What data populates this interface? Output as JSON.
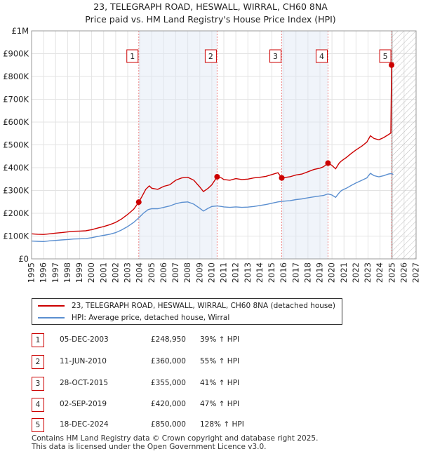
{
  "title_line1": "23, TELEGRAPH ROAD, HESWALL, WIRRAL, CH60 8NA",
  "title_line2": "Price paid vs. HM Land Registry's House Price Index (HPI)",
  "colors": {
    "price": "#cc0000",
    "hpi": "#5b8fd0",
    "marker": "#cc0000",
    "grid": "#e3e3e3"
  },
  "chart_data": {
    "type": "line",
    "xlim": [
      1995,
      2027
    ],
    "ylim": [
      0,
      1000000
    ],
    "y_ticks": [
      0,
      100000,
      200000,
      300000,
      400000,
      500000,
      600000,
      700000,
      800000,
      900000,
      1000000
    ],
    "y_tick_labels": [
      "£0",
      "£100K",
      "£200K",
      "£300K",
      "£400K",
      "£500K",
      "£600K",
      "£700K",
      "£800K",
      "£900K",
      "£1M"
    ],
    "x_ticks": [
      1995,
      1996,
      1997,
      1998,
      1999,
      2000,
      2001,
      2002,
      2003,
      2004,
      2005,
      2006,
      2007,
      2008,
      2009,
      2010,
      2011,
      2012,
      2013,
      2014,
      2015,
      2016,
      2017,
      2018,
      2019,
      2020,
      2021,
      2022,
      2023,
      2024,
      2025,
      2026,
      2027
    ],
    "grid": true,
    "future_hatch_from": 2025.0,
    "series": [
      {
        "name": "23, TELEGRAPH ROAD, HESWALL, WIRRAL, CH60 8NA (detached house)",
        "color": "#cc0000",
        "points": [
          [
            1995.0,
            110000
          ],
          [
            1995.5,
            108000
          ],
          [
            1996.0,
            107000
          ],
          [
            1996.5,
            110000
          ],
          [
            1997.0,
            113000
          ],
          [
            1997.5,
            115000
          ],
          [
            1998.0,
            118000
          ],
          [
            1998.5,
            121000
          ],
          [
            1999.0,
            122000
          ],
          [
            1999.5,
            123000
          ],
          [
            2000.0,
            128000
          ],
          [
            2000.5,
            135000
          ],
          [
            2001.0,
            142000
          ],
          [
            2001.5,
            150000
          ],
          [
            2002.0,
            160000
          ],
          [
            2002.5,
            175000
          ],
          [
            2003.0,
            195000
          ],
          [
            2003.5,
            218000
          ],
          [
            2003.92,
            248950
          ],
          [
            2004.2,
            275000
          ],
          [
            2004.5,
            305000
          ],
          [
            2004.8,
            320000
          ],
          [
            2005.0,
            310000
          ],
          [
            2005.5,
            305000
          ],
          [
            2006.0,
            318000
          ],
          [
            2006.5,
            325000
          ],
          [
            2007.0,
            345000
          ],
          [
            2007.5,
            355000
          ],
          [
            2008.0,
            358000
          ],
          [
            2008.5,
            345000
          ],
          [
            2009.0,
            315000
          ],
          [
            2009.3,
            295000
          ],
          [
            2009.7,
            310000
          ],
          [
            2010.0,
            325000
          ],
          [
            2010.44,
            360000
          ],
          [
            2010.8,
            355000
          ],
          [
            2011.0,
            348000
          ],
          [
            2011.5,
            345000
          ],
          [
            2012.0,
            352000
          ],
          [
            2012.5,
            348000
          ],
          [
            2013.0,
            350000
          ],
          [
            2013.5,
            355000
          ],
          [
            2014.0,
            358000
          ],
          [
            2014.5,
            362000
          ],
          [
            2015.0,
            370000
          ],
          [
            2015.5,
            378000
          ],
          [
            2015.82,
            355000
          ],
          [
            2016.2,
            358000
          ],
          [
            2016.5,
            360000
          ],
          [
            2017.0,
            368000
          ],
          [
            2017.5,
            372000
          ],
          [
            2018.0,
            382000
          ],
          [
            2018.5,
            392000
          ],
          [
            2019.0,
            398000
          ],
          [
            2019.3,
            404000
          ],
          [
            2019.67,
            420000
          ],
          [
            2020.0,
            410000
          ],
          [
            2020.3,
            395000
          ],
          [
            2020.6,
            420000
          ],
          [
            2020.8,
            430000
          ],
          [
            2021.2,
            445000
          ],
          [
            2021.6,
            462000
          ],
          [
            2022.0,
            478000
          ],
          [
            2022.5,
            495000
          ],
          [
            2022.9,
            512000
          ],
          [
            2023.2,
            540000
          ],
          [
            2023.5,
            528000
          ],
          [
            2023.9,
            522000
          ],
          [
            2024.3,
            532000
          ],
          [
            2024.7,
            545000
          ],
          [
            2024.9,
            552000
          ],
          [
            2024.96,
            850000
          ],
          [
            2025.1,
            862000
          ]
        ]
      },
      {
        "name": "HPI: Average price, detached house, Wirral",
        "color": "#5b8fd0",
        "points": [
          [
            1995.0,
            78000
          ],
          [
            1995.5,
            77000
          ],
          [
            1996.0,
            76000
          ],
          [
            1996.5,
            79000
          ],
          [
            1997.0,
            81000
          ],
          [
            1997.5,
            83000
          ],
          [
            1998.0,
            85000
          ],
          [
            1998.5,
            87000
          ],
          [
            1999.0,
            88000
          ],
          [
            1999.5,
            89000
          ],
          [
            2000.0,
            93000
          ],
          [
            2000.5,
            98000
          ],
          [
            2001.0,
            103000
          ],
          [
            2001.5,
            108000
          ],
          [
            2002.0,
            115000
          ],
          [
            2002.5,
            127000
          ],
          [
            2003.0,
            142000
          ],
          [
            2003.5,
            160000
          ],
          [
            2003.92,
            180000
          ],
          [
            2004.3,
            200000
          ],
          [
            2004.7,
            216000
          ],
          [
            2005.0,
            220000
          ],
          [
            2005.5,
            220000
          ],
          [
            2006.0,
            226000
          ],
          [
            2006.5,
            232000
          ],
          [
            2007.0,
            242000
          ],
          [
            2007.5,
            248000
          ],
          [
            2008.0,
            250000
          ],
          [
            2008.5,
            240000
          ],
          [
            2009.0,
            222000
          ],
          [
            2009.3,
            210000
          ],
          [
            2009.7,
            222000
          ],
          [
            2010.0,
            230000
          ],
          [
            2010.44,
            232000
          ],
          [
            2010.8,
            230000
          ],
          [
            2011.0,
            228000
          ],
          [
            2011.5,
            226000
          ],
          [
            2012.0,
            228000
          ],
          [
            2012.5,
            226000
          ],
          [
            2013.0,
            227000
          ],
          [
            2013.5,
            230000
          ],
          [
            2014.0,
            234000
          ],
          [
            2014.5,
            238000
          ],
          [
            2015.0,
            244000
          ],
          [
            2015.5,
            250000
          ],
          [
            2015.82,
            252000
          ],
          [
            2016.2,
            254000
          ],
          [
            2016.5,
            255000
          ],
          [
            2017.0,
            260000
          ],
          [
            2017.5,
            263000
          ],
          [
            2018.0,
            268000
          ],
          [
            2018.5,
            272000
          ],
          [
            2019.0,
            276000
          ],
          [
            2019.3,
            278000
          ],
          [
            2019.67,
            285000
          ],
          [
            2020.0,
            280000
          ],
          [
            2020.3,
            270000
          ],
          [
            2020.6,
            290000
          ],
          [
            2020.8,
            300000
          ],
          [
            2021.2,
            310000
          ],
          [
            2021.6,
            322000
          ],
          [
            2022.0,
            333000
          ],
          [
            2022.5,
            345000
          ],
          [
            2022.9,
            355000
          ],
          [
            2023.2,
            375000
          ],
          [
            2023.5,
            365000
          ],
          [
            2023.9,
            360000
          ],
          [
            2024.3,
            365000
          ],
          [
            2024.7,
            372000
          ],
          [
            2024.96,
            374000
          ],
          [
            2025.1,
            370000
          ]
        ]
      }
    ],
    "transactions": [
      {
        "num": "1",
        "x": 2003.92,
        "price": 248950,
        "date": "05-DEC-2003",
        "price_label": "£248,950",
        "hpi_label": "39% ↑ HPI"
      },
      {
        "num": "2",
        "x": 2010.44,
        "price": 360000,
        "date": "11-JUN-2010",
        "price_label": "£360,000",
        "hpi_label": "55% ↑ HPI"
      },
      {
        "num": "3",
        "x": 2015.82,
        "price": 355000,
        "date": "28-OCT-2015",
        "price_label": "£355,000",
        "hpi_label": "41% ↑ HPI"
      },
      {
        "num": "4",
        "x": 2019.67,
        "price": 420000,
        "date": "02-SEP-2019",
        "price_label": "£420,000",
        "hpi_label": "47% ↑ HPI"
      },
      {
        "num": "5",
        "x": 2024.96,
        "price": 850000,
        "date": "18-DEC-2024",
        "price_label": "£850,000",
        "hpi_label": "128% ↑ HPI"
      }
    ]
  },
  "legend": {
    "price_label": "23, TELEGRAPH ROAD, HESWALL, WIRRAL, CH60 8NA (detached house)",
    "hpi_label": "HPI: Average price, detached house, Wirral"
  },
  "footer": {
    "line1": "Contains HM Land Registry data © Crown copyright and database right 2025.",
    "line2": "This data is licensed under the Open Government Licence v3.0."
  }
}
